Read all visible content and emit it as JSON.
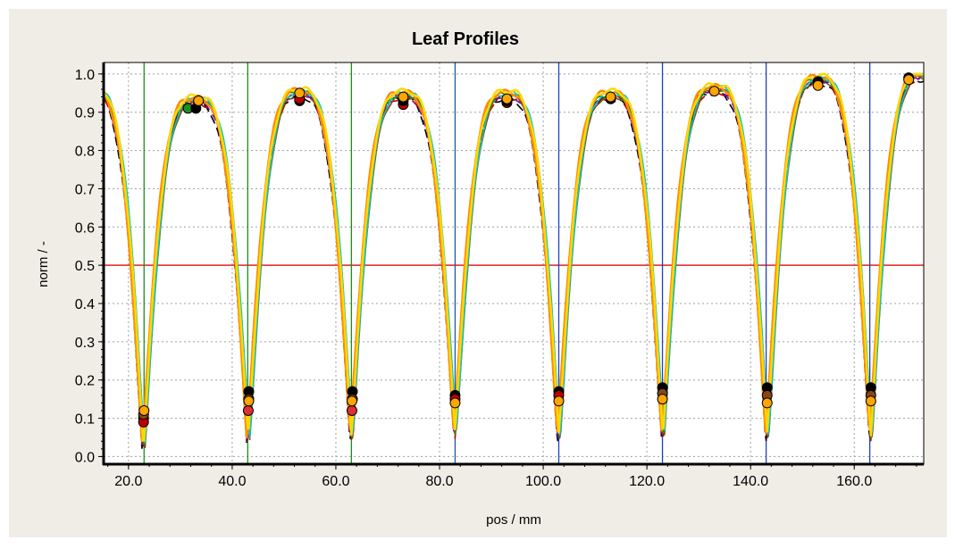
{
  "chart_data": {
    "type": "line",
    "title": "Leaf Profiles",
    "xlabel": "pos / mm",
    "ylabel": "norm / -",
    "xlim": [
      15.2,
      173.4
    ],
    "ylim": [
      -0.02,
      1.03
    ],
    "x_ticks": [
      20,
      40,
      60,
      80,
      100,
      120,
      140,
      160
    ],
    "x_tick_labels": [
      "20.0",
      "40.0",
      "60.0",
      "80.0",
      "100.0",
      "120.0",
      "140.0",
      "160.0"
    ],
    "y_ticks": [
      0,
      0.1,
      0.2,
      0.3,
      0.4,
      0.5,
      0.6,
      0.7,
      0.8,
      0.9,
      1.0
    ],
    "y_tick_labels": [
      "0.0",
      "0.1",
      "0.2",
      "0.3",
      "0.4",
      "0.5",
      "0.6",
      "0.7",
      "0.8",
      "0.9",
      "1.0"
    ],
    "grid": true,
    "threshold_line": {
      "y": 0.5,
      "color": "#e32020"
    },
    "leaf_positions": [
      23,
      43,
      63,
      83,
      103,
      123,
      143,
      163
    ],
    "leaf_line_colors": [
      "#1e8c1e",
      "#1e8c1e",
      "#1e8c1e",
      "#1e5aa0",
      "#2040c0",
      "#2040c0",
      "#2040c0",
      "#2040c0"
    ],
    "profile_colors": [
      "#000000",
      "#c00000",
      "#8b4513",
      "#6a0dad",
      "#228b22",
      "#00c8c8",
      "#ff8c00",
      "#ffd700"
    ],
    "valley_x": [
      22.9,
      43.1,
      63.0,
      83.0,
      103.0,
      123.1,
      143.2,
      163.2
    ],
    "valley_min": [
      0.02,
      0.04,
      0.05,
      0.06,
      0.05,
      0.05,
      0.05,
      0.05
    ],
    "peak_x": [
      33.0,
      53.0,
      73.0,
      93.0,
      113.0,
      133.0,
      153.0,
      171.0
    ],
    "peak_max": [
      0.93,
      0.95,
      0.945,
      0.945,
      0.945,
      0.96,
      0.985,
      0.995
    ],
    "markers": [
      {
        "x": 22.9,
        "y": 0.1,
        "color": "#000000"
      },
      {
        "x": 22.9,
        "y": 0.09,
        "color": "#c00000"
      },
      {
        "x": 22.9,
        "y": 0.11,
        "color": "#8b4513"
      },
      {
        "x": 23.0,
        "y": 0.12,
        "color": "#ffa500"
      },
      {
        "x": 31.5,
        "y": 0.91,
        "color": "#228b22"
      },
      {
        "x": 33.0,
        "y": 0.91,
        "color": "#000000"
      },
      {
        "x": 33.5,
        "y": 0.93,
        "color": "#ffa500"
      },
      {
        "x": 43.2,
        "y": 0.17,
        "color": "#000000"
      },
      {
        "x": 43.2,
        "y": 0.15,
        "color": "#8b4513"
      },
      {
        "x": 43.1,
        "y": 0.12,
        "color": "#e03030"
      },
      {
        "x": 43.2,
        "y": 0.145,
        "color": "#ffa500"
      },
      {
        "x": 53.0,
        "y": 0.93,
        "color": "#000000"
      },
      {
        "x": 53.0,
        "y": 0.935,
        "color": "#c00000"
      },
      {
        "x": 53.0,
        "y": 0.95,
        "color": "#ffa500"
      },
      {
        "x": 63.2,
        "y": 0.17,
        "color": "#000000"
      },
      {
        "x": 63.2,
        "y": 0.15,
        "color": "#8b4513"
      },
      {
        "x": 63.1,
        "y": 0.12,
        "color": "#e03030"
      },
      {
        "x": 63.1,
        "y": 0.145,
        "color": "#ffa500"
      },
      {
        "x": 73.0,
        "y": 0.92,
        "color": "#c00000"
      },
      {
        "x": 73.0,
        "y": 0.93,
        "color": "#000000"
      },
      {
        "x": 73.0,
        "y": 0.94,
        "color": "#ffa500"
      },
      {
        "x": 83.0,
        "y": 0.16,
        "color": "#000000"
      },
      {
        "x": 83.0,
        "y": 0.15,
        "color": "#c00000"
      },
      {
        "x": 83.0,
        "y": 0.14,
        "color": "#ffa500"
      },
      {
        "x": 93.0,
        "y": 0.925,
        "color": "#c00000"
      },
      {
        "x": 93.0,
        "y": 0.93,
        "color": "#000000"
      },
      {
        "x": 93.0,
        "y": 0.935,
        "color": "#ffa500"
      },
      {
        "x": 103.0,
        "y": 0.17,
        "color": "#000000"
      },
      {
        "x": 103.0,
        "y": 0.16,
        "color": "#c00000"
      },
      {
        "x": 103.0,
        "y": 0.145,
        "color": "#ffa500"
      },
      {
        "x": 113.0,
        "y": 0.935,
        "color": "#000000"
      },
      {
        "x": 113.0,
        "y": 0.94,
        "color": "#ffa500"
      },
      {
        "x": 123.0,
        "y": 0.18,
        "color": "#000000"
      },
      {
        "x": 123.0,
        "y": 0.165,
        "color": "#8b4513"
      },
      {
        "x": 123.0,
        "y": 0.15,
        "color": "#ffa500"
      },
      {
        "x": 133.0,
        "y": 0.955,
        "color": "#ffa500"
      },
      {
        "x": 143.2,
        "y": 0.18,
        "color": "#000000"
      },
      {
        "x": 143.2,
        "y": 0.16,
        "color": "#8b4513"
      },
      {
        "x": 143.2,
        "y": 0.14,
        "color": "#ffa500"
      },
      {
        "x": 153.0,
        "y": 0.98,
        "color": "#000000"
      },
      {
        "x": 153.0,
        "y": 0.97,
        "color": "#ffa500"
      },
      {
        "x": 163.2,
        "y": 0.18,
        "color": "#000000"
      },
      {
        "x": 163.2,
        "y": 0.16,
        "color": "#8b4513"
      },
      {
        "x": 163.2,
        "y": 0.145,
        "color": "#ffa500"
      },
      {
        "x": 170.5,
        "y": 0.99,
        "color": "#000000"
      },
      {
        "x": 170.5,
        "y": 0.985,
        "color": "#ffa500"
      }
    ]
  }
}
